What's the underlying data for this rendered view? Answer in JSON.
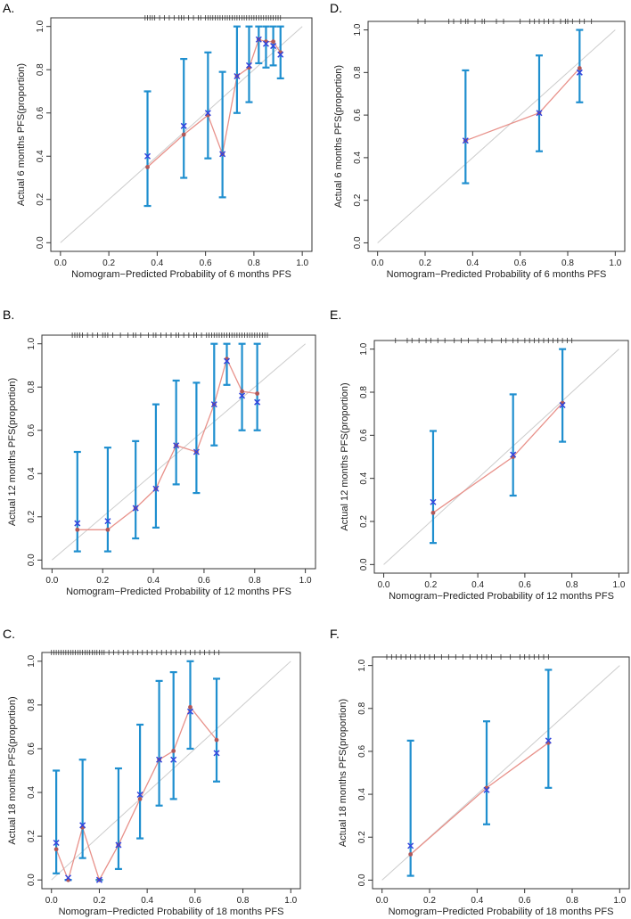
{
  "chart_data": [
    {
      "panel": "A.",
      "type": "scatter",
      "xlabel": "Nomogram−Predicted Probability of 6 months PFS",
      "ylabel": "Actual 6 months PFS(proportion)",
      "xlim": [
        0,
        1
      ],
      "ylim": [
        0,
        1
      ],
      "x_ticks": [
        "0.0",
        "0.2",
        "0.4",
        "0.6",
        "0.8",
        "1.0"
      ],
      "y_ticks": [
        "0.0",
        "0.2",
        "0.4",
        "0.6",
        "0.8",
        "1.0"
      ],
      "points": [
        {
          "x": 0.36,
          "observed": 0.35,
          "corrected": 0.4,
          "lower": 0.17,
          "upper": 0.7
        },
        {
          "x": 0.51,
          "observed": 0.5,
          "corrected": 0.54,
          "lower": 0.3,
          "upper": 0.85
        },
        {
          "x": 0.61,
          "observed": 0.59,
          "corrected": 0.6,
          "lower": 0.39,
          "upper": 0.88
        },
        {
          "x": 0.67,
          "observed": 0.41,
          "corrected": 0.41,
          "lower": 0.21,
          "upper": 0.79
        },
        {
          "x": 0.73,
          "observed": 0.77,
          "corrected": 0.77,
          "lower": 0.6,
          "upper": 1.0
        },
        {
          "x": 0.78,
          "observed": 0.81,
          "corrected": 0.82,
          "lower": 0.65,
          "upper": 1.0
        },
        {
          "x": 0.82,
          "observed": 0.94,
          "corrected": 0.94,
          "lower": 0.83,
          "upper": 1.0
        },
        {
          "x": 0.85,
          "observed": 0.93,
          "corrected": 0.92,
          "lower": 0.81,
          "upper": 1.0
        },
        {
          "x": 0.88,
          "observed": 0.93,
          "corrected": 0.91,
          "lower": 0.82,
          "upper": 1.0
        },
        {
          "x": 0.91,
          "observed": 0.88,
          "corrected": 0.87,
          "lower": 0.76,
          "upper": 1.0
        }
      ],
      "rug": [
        0.35,
        0.36,
        0.37,
        0.38,
        0.39,
        0.41,
        0.43,
        0.45,
        0.47,
        0.49,
        0.5,
        0.51,
        0.53,
        0.55,
        0.57,
        0.58,
        0.6,
        0.61,
        0.62,
        0.63,
        0.64,
        0.65,
        0.66,
        0.67,
        0.68,
        0.69,
        0.7,
        0.71,
        0.72,
        0.73,
        0.74,
        0.75,
        0.76,
        0.77,
        0.78,
        0.79,
        0.8,
        0.81,
        0.82,
        0.83,
        0.84,
        0.85,
        0.86,
        0.87,
        0.88,
        0.89,
        0.9,
        0.91
      ]
    },
    {
      "panel": "D.",
      "type": "scatter",
      "xlabel": "Nomogram−Predicted Probability of 6 months PFS",
      "ylabel": "Actual 6 months PFS(proportion)",
      "xlim": [
        0,
        1
      ],
      "ylim": [
        0,
        1
      ],
      "x_ticks": [
        "0.0",
        "0.2",
        "0.4",
        "0.6",
        "0.8",
        "1.0"
      ],
      "y_ticks": [
        "0.0",
        "0.2",
        "0.4",
        "0.6",
        "0.8",
        "1.0"
      ],
      "points": [
        {
          "x": 0.37,
          "observed": 0.48,
          "corrected": 0.48,
          "lower": 0.28,
          "upper": 0.81
        },
        {
          "x": 0.68,
          "observed": 0.61,
          "corrected": 0.61,
          "lower": 0.43,
          "upper": 0.88
        },
        {
          "x": 0.85,
          "observed": 0.82,
          "corrected": 0.8,
          "lower": 0.66,
          "upper": 1.0
        }
      ],
      "rug": [
        0.17,
        0.2,
        0.3,
        0.32,
        0.35,
        0.37,
        0.38,
        0.41,
        0.44,
        0.45,
        0.5,
        0.53,
        0.6,
        0.64,
        0.66,
        0.68,
        0.7,
        0.72,
        0.74,
        0.77,
        0.79,
        0.8,
        0.82,
        0.85,
        0.87,
        0.9
      ]
    },
    {
      "panel": "B.",
      "type": "scatter",
      "xlabel": "Nomogram−Predicted Probability of 12 months PFS",
      "ylabel": "Actual 12 months PFS(proportion)",
      "xlim": [
        0,
        1
      ],
      "ylim": [
        0,
        1
      ],
      "x_ticks": [
        "0.0",
        "0.2",
        "0.4",
        "0.6",
        "0.8",
        "1.0"
      ],
      "y_ticks": [
        "0.0",
        "0.2",
        "0.4",
        "0.6",
        "0.8",
        "1.0"
      ],
      "points": [
        {
          "x": 0.1,
          "observed": 0.14,
          "corrected": 0.17,
          "lower": 0.04,
          "upper": 0.5
        },
        {
          "x": 0.22,
          "observed": 0.14,
          "corrected": 0.18,
          "lower": 0.04,
          "upper": 0.52
        },
        {
          "x": 0.33,
          "observed": 0.24,
          "corrected": 0.24,
          "lower": 0.1,
          "upper": 0.55
        },
        {
          "x": 0.41,
          "observed": 0.33,
          "corrected": 0.33,
          "lower": 0.15,
          "upper": 0.72
        },
        {
          "x": 0.49,
          "observed": 0.53,
          "corrected": 0.53,
          "lower": 0.35,
          "upper": 0.83
        },
        {
          "x": 0.57,
          "observed": 0.5,
          "corrected": 0.5,
          "lower": 0.31,
          "upper": 0.82
        },
        {
          "x": 0.64,
          "observed": 0.72,
          "corrected": 0.72,
          "lower": 0.53,
          "upper": 1.0
        },
        {
          "x": 0.69,
          "observed": 0.93,
          "corrected": 0.92,
          "lower": 0.81,
          "upper": 1.0
        },
        {
          "x": 0.75,
          "observed": 0.78,
          "corrected": 0.76,
          "lower": 0.6,
          "upper": 1.0
        },
        {
          "x": 0.81,
          "observed": 0.77,
          "corrected": 0.73,
          "lower": 0.6,
          "upper": 1.0
        }
      ],
      "rug": [
        0.08,
        0.09,
        0.1,
        0.11,
        0.12,
        0.14,
        0.16,
        0.18,
        0.2,
        0.21,
        0.22,
        0.24,
        0.27,
        0.3,
        0.32,
        0.33,
        0.35,
        0.38,
        0.4,
        0.41,
        0.43,
        0.45,
        0.47,
        0.49,
        0.5,
        0.52,
        0.54,
        0.56,
        0.57,
        0.59,
        0.61,
        0.62,
        0.63,
        0.64,
        0.65,
        0.66,
        0.67,
        0.68,
        0.69,
        0.7,
        0.71,
        0.72,
        0.73,
        0.74,
        0.75,
        0.76,
        0.77,
        0.78,
        0.79,
        0.8,
        0.81,
        0.82,
        0.83,
        0.84,
        0.85
      ]
    },
    {
      "panel": "E.",
      "type": "scatter",
      "xlabel": "Nomogram−Predicted Probability of 12 months PFS",
      "ylabel": "Actual 12 months PFS(proportion)",
      "xlim": [
        0,
        1
      ],
      "ylim": [
        0,
        1
      ],
      "x_ticks": [
        "0.0",
        "0.2",
        "0.4",
        "0.6",
        "0.8",
        "1.0"
      ],
      "y_ticks": [
        "0.0",
        "0.2",
        "0.4",
        "0.6",
        "0.8",
        "1.0"
      ],
      "points": [
        {
          "x": 0.21,
          "observed": 0.24,
          "corrected": 0.29,
          "lower": 0.1,
          "upper": 0.62
        },
        {
          "x": 0.55,
          "observed": 0.5,
          "corrected": 0.51,
          "lower": 0.32,
          "upper": 0.79
        },
        {
          "x": 0.76,
          "observed": 0.75,
          "corrected": 0.74,
          "lower": 0.57,
          "upper": 1.0
        }
      ],
      "rug": [
        0.05,
        0.1,
        0.12,
        0.15,
        0.18,
        0.2,
        0.23,
        0.26,
        0.3,
        0.33,
        0.36,
        0.4,
        0.43,
        0.46,
        0.5,
        0.52,
        0.55,
        0.57,
        0.6,
        0.62,
        0.64,
        0.66,
        0.68,
        0.7,
        0.72,
        0.74,
        0.76,
        0.78,
        0.8
      ]
    },
    {
      "panel": "C.",
      "type": "scatter",
      "xlabel": "Nomogram−Predicted Probability of 18 months PFS",
      "ylabel": "Actual 18 months PFS(proportion)",
      "xlim": [
        0,
        1
      ],
      "ylim": [
        0,
        1
      ],
      "x_ticks": [
        "0.0",
        "0.2",
        "0.4",
        "0.6",
        "0.8",
        "1.0"
      ],
      "y_ticks": [
        "0.0",
        "0.2",
        "0.4",
        "0.6",
        "0.8",
        "1.0"
      ],
      "points": [
        {
          "x": 0.02,
          "observed": 0.14,
          "corrected": 0.17,
          "lower": 0.03,
          "upper": 0.5
        },
        {
          "x": 0.07,
          "observed": 0.0,
          "corrected": 0.01,
          "lower": 0.0,
          "upper": 0.0
        },
        {
          "x": 0.13,
          "observed": 0.24,
          "corrected": 0.25,
          "lower": 0.1,
          "upper": 0.55
        },
        {
          "x": 0.2,
          "observed": 0.0,
          "corrected": 0.0,
          "lower": 0.0,
          "upper": 0.0
        },
        {
          "x": 0.28,
          "observed": 0.16,
          "corrected": 0.16,
          "lower": 0.05,
          "upper": 0.51
        },
        {
          "x": 0.37,
          "observed": 0.37,
          "corrected": 0.39,
          "lower": 0.19,
          "upper": 0.71
        },
        {
          "x": 0.45,
          "observed": 0.55,
          "corrected": 0.55,
          "lower": 0.34,
          "upper": 0.91
        },
        {
          "x": 0.51,
          "observed": 0.59,
          "corrected": 0.55,
          "lower": 0.37,
          "upper": 0.95
        },
        {
          "x": 0.58,
          "observed": 0.79,
          "corrected": 0.77,
          "lower": 0.6,
          "upper": 1.0
        },
        {
          "x": 0.69,
          "observed": 0.64,
          "corrected": 0.58,
          "lower": 0.45,
          "upper": 0.92
        }
      ],
      "rug": [
        0.0,
        0.01,
        0.02,
        0.03,
        0.04,
        0.05,
        0.06,
        0.07,
        0.08,
        0.09,
        0.1,
        0.11,
        0.12,
        0.13,
        0.14,
        0.15,
        0.16,
        0.17,
        0.18,
        0.19,
        0.2,
        0.21,
        0.22,
        0.24,
        0.26,
        0.28,
        0.3,
        0.32,
        0.34,
        0.36,
        0.38,
        0.4,
        0.42,
        0.44,
        0.46,
        0.48,
        0.5,
        0.52,
        0.54,
        0.56,
        0.58,
        0.6,
        0.62,
        0.64,
        0.66,
        0.68,
        0.7
      ]
    },
    {
      "panel": "F.",
      "type": "scatter",
      "xlabel": "Nomogram−Predicted Probability of 18 months PFS",
      "ylabel": "Actual 18 months PFS(proportion)",
      "xlim": [
        0,
        1
      ],
      "ylim": [
        0,
        1
      ],
      "x_ticks": [
        "0.0",
        "0.2",
        "0.4",
        "0.6",
        "0.8",
        "1.0"
      ],
      "y_ticks": [
        "0.0",
        "0.2",
        "0.4",
        "0.6",
        "0.8",
        "1.0"
      ],
      "points": [
        {
          "x": 0.12,
          "observed": 0.12,
          "corrected": 0.16,
          "lower": 0.02,
          "upper": 0.65
        },
        {
          "x": 0.44,
          "observed": 0.43,
          "corrected": 0.42,
          "lower": 0.26,
          "upper": 0.74
        },
        {
          "x": 0.7,
          "observed": 0.64,
          "corrected": 0.65,
          "lower": 0.43,
          "upper": 0.98
        }
      ],
      "rug": [
        0.02,
        0.04,
        0.06,
        0.08,
        0.1,
        0.12,
        0.14,
        0.16,
        0.18,
        0.2,
        0.22,
        0.25,
        0.28,
        0.31,
        0.34,
        0.37,
        0.4,
        0.42,
        0.44,
        0.46,
        0.5,
        0.54,
        0.58,
        0.6,
        0.62,
        0.64,
        0.66,
        0.68,
        0.7
      ]
    }
  ],
  "colors": {
    "errorbar": "#1f8fcf",
    "line": "#e8918a",
    "observed_point": "#b0585a",
    "corrected_marker": "#3344dd",
    "diagonal": "#cccccc",
    "frame": "#333333"
  }
}
